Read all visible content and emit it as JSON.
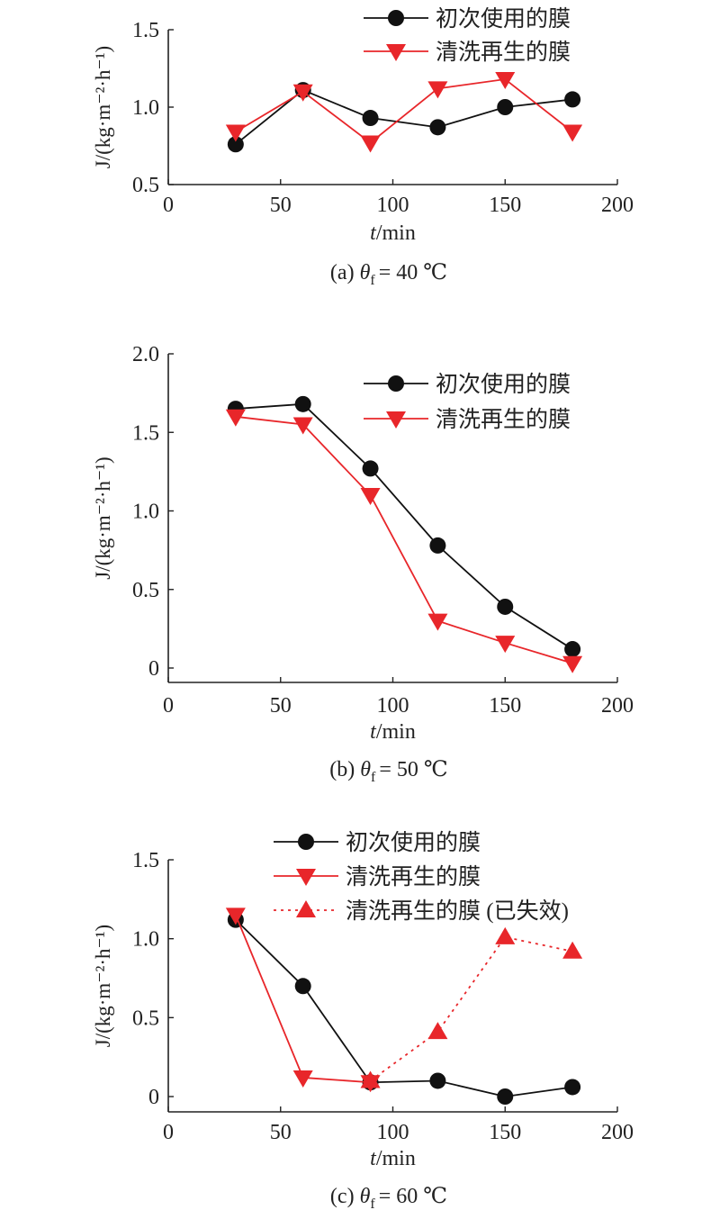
{
  "colors": {
    "black_series": "#111111",
    "red_series": "#e8262a",
    "axis": "#222222"
  },
  "chart_data": [
    {
      "type": "line",
      "caption_prefix": "(a)",
      "caption_value": "= 40 ℃",
      "theta_symbol": "θ",
      "theta_subscript": "f",
      "xlabel_var": "t",
      "xlabel_unit": "/min",
      "ylabel": "J/(kg·m⁻²·h⁻¹)",
      "xlim": [
        0,
        200
      ],
      "ylim": [
        0.5,
        1.5
      ],
      "xticks": [
        0,
        50,
        100,
        150,
        200
      ],
      "xtick_labels": [
        "0",
        "50",
        "100",
        "150",
        "200"
      ],
      "yticks": [
        0.5,
        1.0,
        1.5
      ],
      "ytick_labels": [
        "0.5",
        "1.0",
        "1.5"
      ],
      "legend_position": "top-right",
      "series": [
        {
          "name": "初次使用的膜",
          "marker": "circle",
          "color": "black",
          "dashed": false,
          "x": [
            30,
            60,
            90,
            120,
            150,
            180
          ],
          "y": [
            0.76,
            1.11,
            0.93,
            0.87,
            1.0,
            1.05
          ]
        },
        {
          "name": "清洗再生的膜",
          "marker": "triangle-down",
          "color": "red",
          "dashed": false,
          "x": [
            30,
            60,
            90,
            120,
            150,
            180
          ],
          "y": [
            0.84,
            1.1,
            0.77,
            1.12,
            1.18,
            0.84
          ]
        }
      ]
    },
    {
      "type": "line",
      "caption_prefix": "(b)",
      "caption_value": "= 50 ℃",
      "theta_symbol": "θ",
      "theta_subscript": "f",
      "xlabel_var": "t",
      "xlabel_unit": "/min",
      "ylabel": "J/(kg·m⁻²·h⁻¹)",
      "xlim": [
        0,
        200
      ],
      "ylim": [
        -0.1,
        2.0
      ],
      "xticks": [
        0,
        50,
        100,
        150,
        200
      ],
      "xtick_labels": [
        "0",
        "50",
        "100",
        "150",
        "200"
      ],
      "yticks": [
        0,
        0.5,
        1.0,
        1.5,
        2.0
      ],
      "ytick_labels": [
        "0",
        "0.5",
        "1.0",
        "1.5",
        "2.0"
      ],
      "legend_position": "top-right",
      "series": [
        {
          "name": "初次使用的膜",
          "marker": "circle",
          "color": "black",
          "dashed": false,
          "x": [
            30,
            60,
            90,
            120,
            150,
            180
          ],
          "y": [
            1.65,
            1.68,
            1.27,
            0.78,
            0.39,
            0.12
          ]
        },
        {
          "name": "清洗再生的膜",
          "marker": "triangle-down",
          "color": "red",
          "dashed": false,
          "x": [
            30,
            60,
            90,
            120,
            150,
            180
          ],
          "y": [
            1.6,
            1.55,
            1.1,
            0.3,
            0.16,
            0.03
          ]
        }
      ]
    },
    {
      "type": "line",
      "caption_prefix": "(c)",
      "caption_value": "= 60 ℃",
      "theta_symbol": "θ",
      "theta_subscript": "f",
      "xlabel_var": "t",
      "xlabel_unit": "/min",
      "ylabel": "J/(kg·m⁻²·h⁻¹)",
      "xlim": [
        0,
        200
      ],
      "ylim": [
        -0.1,
        1.5
      ],
      "xticks": [
        0,
        50,
        100,
        150,
        200
      ],
      "xtick_labels": [
        "0",
        "50",
        "100",
        "150",
        "200"
      ],
      "yticks": [
        0,
        0.5,
        1.0,
        1.5
      ],
      "ytick_labels": [
        "0",
        "0.5",
        "1.0",
        "1.5"
      ],
      "legend_position": "top-right",
      "series": [
        {
          "name": "初次使用的膜",
          "marker": "circle",
          "color": "black",
          "dashed": false,
          "x": [
            30,
            60,
            90,
            120,
            150,
            180
          ],
          "y": [
            1.12,
            0.7,
            0.09,
            0.1,
            0.0,
            0.06
          ]
        },
        {
          "name": "清洗再生的膜",
          "marker": "triangle-down",
          "color": "red",
          "dashed": false,
          "x": [
            30,
            60,
            90
          ],
          "y": [
            1.15,
            0.12,
            0.09
          ]
        },
        {
          "name": "清洗再生的膜 (已失效)",
          "marker": "triangle-up",
          "color": "red",
          "dashed": true,
          "x": [
            90,
            120,
            150,
            180
          ],
          "y": [
            0.1,
            0.41,
            1.01,
            0.92
          ]
        }
      ]
    }
  ]
}
